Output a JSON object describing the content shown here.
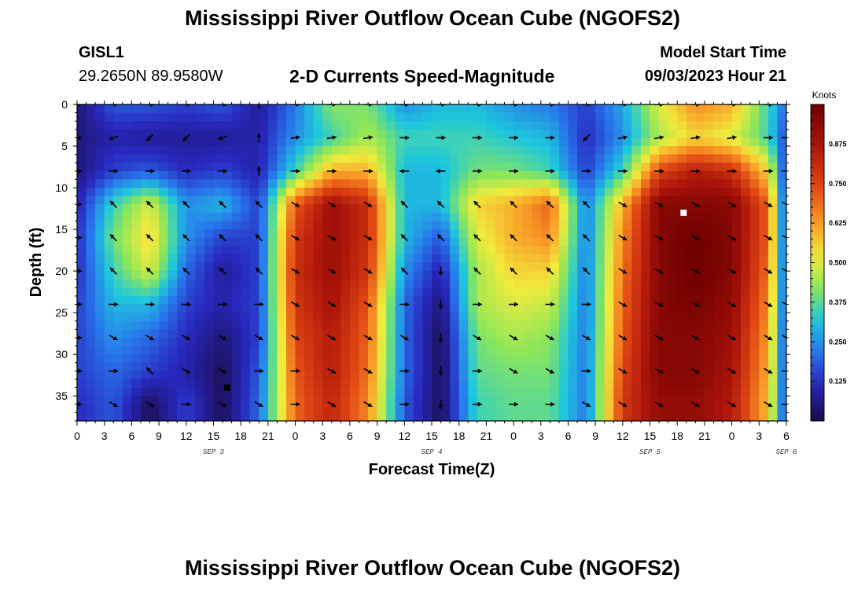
{
  "header": {
    "title": "Mississippi River Outflow Ocean Cube (NGOFS2)",
    "station_name": "GISL1",
    "station_coords": "29.2650N  89.9580W",
    "subtitle": "2-D Currents Speed-Magnitude",
    "model_start_label": "Model Start Time",
    "model_start_value": "09/03/2023 Hour 21"
  },
  "footer": {
    "title": "Mississippi River Outflow Ocean Cube (NGOFS2)"
  },
  "chart_data": {
    "type": "heatmap",
    "title": "2-D Currents Speed-Magnitude",
    "xlabel": "Forecast Time(Z)",
    "ylabel": "Depth (ft)",
    "xlim": [
      0,
      78
    ],
    "ylim": [
      38,
      0
    ],
    "x_tick_labels": [
      "0",
      "3",
      "6",
      "9",
      "12",
      "15",
      "18",
      "21",
      "0",
      "3",
      "6",
      "9",
      "12",
      "15",
      "18",
      "21",
      "0",
      "3",
      "6",
      "9",
      "12",
      "15",
      "18",
      "21",
      "0",
      "3",
      "6"
    ],
    "y_ticks": [
      0,
      5,
      10,
      15,
      20,
      25,
      30,
      35
    ],
    "date_labels": [
      {
        "hours": 15,
        "label": "SEP 3"
      },
      {
        "hours": 39,
        "label": "SEP 4"
      },
      {
        "hours": 63,
        "label": "SEP 5"
      },
      {
        "hours": 78,
        "label": "SEP 6"
      }
    ],
    "colorbar": {
      "units": "Knots",
      "range": [
        0.0,
        1.0
      ],
      "ticks": [
        0.125,
        0.25,
        0.375,
        0.5,
        0.625,
        0.75,
        0.875
      ],
      "tick_labels": [
        "0.125",
        "0.250",
        "0.375",
        "0.500",
        "0.625",
        "0.750",
        "0.875"
      ]
    },
    "speed_rows": {
      "depths_ft": [
        0,
        4,
        8,
        12,
        16,
        20,
        24,
        28,
        32,
        36
      ],
      "times_h": [
        0,
        4,
        8,
        12,
        16,
        20,
        24,
        28,
        32,
        36,
        40,
        44,
        48,
        52,
        56,
        60,
        64,
        68,
        72,
        76,
        78
      ],
      "values": [
        [
          0.05,
          0.18,
          0.18,
          0.15,
          0.18,
          0.08,
          0.22,
          0.42,
          0.4,
          0.25,
          0.3,
          0.3,
          0.25,
          0.22,
          0.15,
          0.28,
          0.5,
          0.65,
          0.6,
          0.35,
          0.2
        ],
        [
          0.05,
          0.1,
          0.08,
          0.08,
          0.08,
          0.1,
          0.25,
          0.35,
          0.45,
          0.35,
          0.35,
          0.35,
          0.32,
          0.3,
          0.12,
          0.25,
          0.45,
          0.55,
          0.5,
          0.35,
          0.15
        ],
        [
          0.05,
          0.15,
          0.18,
          0.12,
          0.15,
          0.1,
          0.35,
          0.6,
          0.6,
          0.3,
          0.3,
          0.4,
          0.4,
          0.35,
          0.15,
          0.35,
          0.75,
          0.85,
          0.8,
          0.55,
          0.1
        ],
        [
          0.1,
          0.35,
          0.5,
          0.25,
          0.3,
          0.15,
          0.72,
          0.9,
          0.8,
          0.3,
          0.3,
          0.55,
          0.6,
          0.7,
          0.22,
          0.6,
          0.95,
          0.95,
          0.95,
          0.7,
          0.12
        ],
        [
          0.12,
          0.4,
          0.55,
          0.25,
          0.15,
          0.15,
          0.78,
          0.9,
          0.8,
          0.3,
          0.18,
          0.5,
          0.6,
          0.65,
          0.22,
          0.65,
          0.95,
          1.0,
          0.95,
          0.7,
          0.12
        ],
        [
          0.12,
          0.35,
          0.5,
          0.2,
          0.08,
          0.15,
          0.8,
          0.9,
          0.78,
          0.25,
          0.1,
          0.45,
          0.55,
          0.55,
          0.22,
          0.68,
          0.95,
          1.0,
          0.95,
          0.68,
          0.12
        ],
        [
          0.15,
          0.3,
          0.3,
          0.15,
          0.1,
          0.15,
          0.78,
          0.88,
          0.72,
          0.2,
          0.05,
          0.45,
          0.5,
          0.48,
          0.22,
          0.7,
          0.95,
          0.98,
          0.92,
          0.65,
          0.12
        ],
        [
          0.15,
          0.25,
          0.2,
          0.12,
          0.05,
          0.15,
          0.75,
          0.85,
          0.7,
          0.2,
          0.02,
          0.4,
          0.45,
          0.42,
          0.22,
          0.72,
          0.95,
          0.95,
          0.9,
          0.62,
          0.12
        ],
        [
          0.15,
          0.2,
          0.15,
          0.1,
          0.02,
          0.18,
          0.72,
          0.85,
          0.68,
          0.2,
          0.02,
          0.38,
          0.4,
          0.4,
          0.22,
          0.75,
          0.95,
          0.95,
          0.88,
          0.6,
          0.12
        ],
        [
          0.12,
          0.18,
          0.02,
          0.15,
          0.02,
          0.2,
          0.7,
          0.82,
          0.65,
          0.18,
          0.02,
          0.35,
          0.38,
          0.38,
          0.22,
          0.78,
          0.92,
          0.92,
          0.85,
          0.58,
          0.12
        ]
      ]
    },
    "vector_rows": {
      "depths_ft": [
        0,
        4,
        8,
        12,
        16,
        20,
        24,
        28,
        32,
        36
      ],
      "times_h": [
        0,
        4,
        8,
        12,
        16,
        20,
        24,
        28,
        32,
        36,
        40,
        44,
        48,
        52,
        56,
        60,
        64,
        68,
        72,
        76,
        78
      ],
      "angles_deg": [
        [
          0,
          0,
          0,
          0,
          0,
          90,
          0,
          0,
          0,
          0,
          0,
          0,
          0,
          0,
          0,
          0,
          0,
          0,
          0,
          0,
          0
        ],
        [
          0,
          200,
          225,
          225,
          200,
          90,
          10,
          10,
          10,
          0,
          0,
          0,
          0,
          0,
          225,
          10,
          10,
          10,
          10,
          0,
          0
        ],
        [
          0,
          0,
          0,
          0,
          0,
          90,
          0,
          0,
          0,
          180,
          180,
          0,
          0,
          0,
          0,
          0,
          0,
          0,
          0,
          0,
          0
        ],
        [
          0,
          135,
          135,
          135,
          135,
          135,
          330,
          330,
          330,
          135,
          135,
          135,
          135,
          135,
          135,
          330,
          330,
          330,
          330,
          330,
          330
        ],
        [
          0,
          135,
          135,
          135,
          135,
          135,
          330,
          330,
          330,
          135,
          135,
          135,
          135,
          135,
          135,
          330,
          330,
          330,
          330,
          330,
          330
        ],
        [
          0,
          135,
          135,
          135,
          135,
          135,
          330,
          330,
          330,
          135,
          270,
          135,
          135,
          135,
          135,
          330,
          330,
          330,
          330,
          330,
          330
        ],
        [
          0,
          0,
          0,
          0,
          0,
          0,
          330,
          330,
          330,
          0,
          270,
          0,
          0,
          0,
          0,
          330,
          330,
          330,
          330,
          330,
          330
        ],
        [
          0,
          330,
          330,
          330,
          330,
          330,
          330,
          330,
          330,
          330,
          270,
          330,
          330,
          330,
          330,
          330,
          330,
          330,
          330,
          330,
          330
        ],
        [
          0,
          0,
          135,
          330,
          330,
          0,
          0,
          330,
          330,
          0,
          270,
          0,
          330,
          330,
          0,
          330,
          330,
          330,
          330,
          330,
          0
        ],
        [
          0,
          330,
          330,
          0,
          330,
          330,
          0,
          330,
          330,
          0,
          270,
          0,
          0,
          0,
          330,
          330,
          330,
          330,
          330,
          330,
          0
        ]
      ]
    },
    "markers": [
      {
        "time_h": 16.5,
        "depth_ft": 34,
        "color": "#000000"
      },
      {
        "time_h": 66.7,
        "depth_ft": 13,
        "color": "#ffffff"
      }
    ]
  }
}
